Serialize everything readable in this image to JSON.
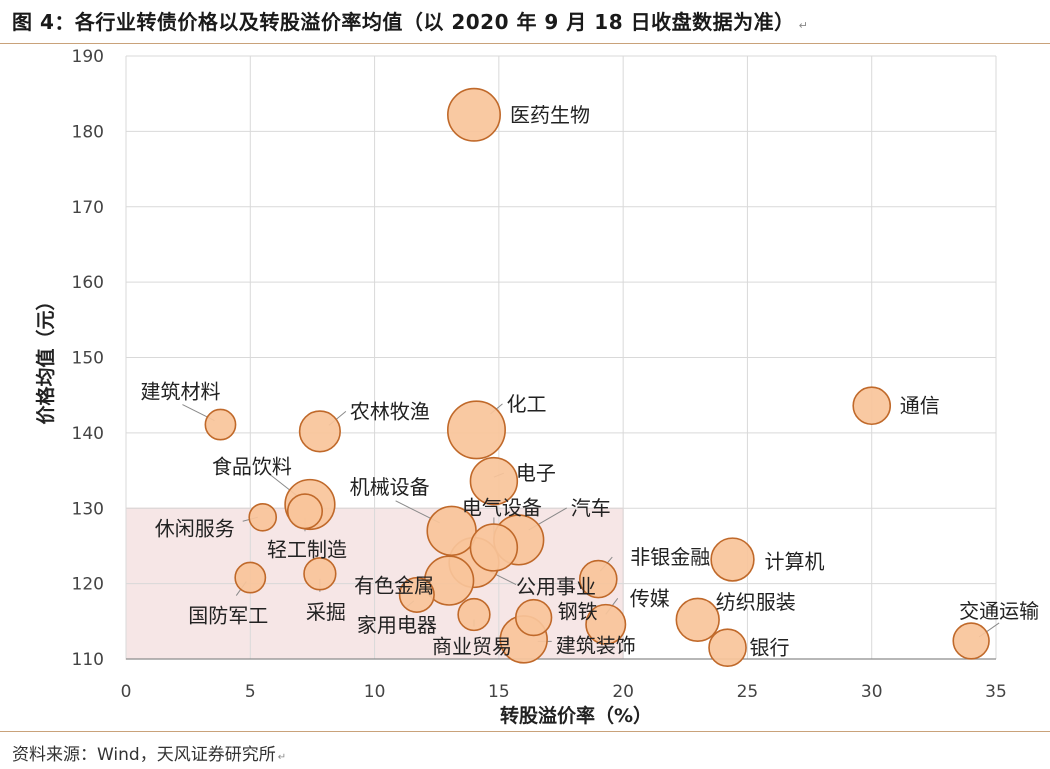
{
  "figure": {
    "title": "图 4：各行业转债价格以及转股溢价率均值（以 2020 年 9 月 18 日收盘数据为准）",
    "source": "资料来源：Wind，天风证券研究所"
  },
  "colors": {
    "bubble_fill": "#f8c49a",
    "bubble_stroke": "#c0692a",
    "highlight_region": "#f6e6e6",
    "grid": "#d9d9d9",
    "rule": "#c9a27a"
  },
  "chart_data": {
    "type": "scatter",
    "title": "",
    "xlabel": "转股溢价率（%）",
    "ylabel": "价格均值（元）",
    "xlim": [
      0,
      35
    ],
    "ylim": [
      110,
      190
    ],
    "xticks": [
      0,
      5,
      10,
      15,
      20,
      25,
      30,
      35
    ],
    "yticks": [
      110,
      120,
      130,
      140,
      150,
      160,
      170,
      180,
      190
    ],
    "grid": true,
    "highlight_region": {
      "x": [
        0,
        20
      ],
      "y": [
        110,
        130
      ]
    },
    "points": [
      {
        "name": "医药生物",
        "x": 14.0,
        "y": 182.2,
        "size": 3.0
      },
      {
        "name": "化工",
        "x": 14.1,
        "y": 140.4,
        "size": 3.6
      },
      {
        "name": "通信",
        "x": 30.0,
        "y": 143.6,
        "size": 1.5
      },
      {
        "name": "建筑材料",
        "x": 3.8,
        "y": 141.1,
        "size": 1.0
      },
      {
        "name": "农林牧渔",
        "x": 7.8,
        "y": 140.2,
        "size": 1.8
      },
      {
        "name": "电子",
        "x": 14.8,
        "y": 133.6,
        "size": 2.4
      },
      {
        "name": "食品饮料",
        "x": 7.4,
        "y": 130.5,
        "size": 2.7
      },
      {
        "name": "机械设备",
        "x": 13.1,
        "y": 127.0,
        "size": 2.6
      },
      {
        "name": "电气设备",
        "x": 14.8,
        "y": 124.8,
        "size": 2.4
      },
      {
        "name": "汽车",
        "x": 15.8,
        "y": 125.8,
        "size": 2.7
      },
      {
        "name": "休闲服务",
        "x": 5.5,
        "y": 128.8,
        "size": 0.8
      },
      {
        "name": "轻工制造",
        "x": 7.2,
        "y": 129.6,
        "size": 1.3
      },
      {
        "name": "有色金属",
        "x": 13.0,
        "y": 120.4,
        "size": 2.6
      },
      {
        "name": "公用事业",
        "x": 14.0,
        "y": 122.8,
        "size": 2.7
      },
      {
        "name": "非银金融",
        "x": 19.0,
        "y": 120.6,
        "size": 1.5
      },
      {
        "name": "计算机",
        "x": 24.4,
        "y": 123.2,
        "size": 2.0
      },
      {
        "name": "国防军工",
        "x": 5.0,
        "y": 120.8,
        "size": 1.0
      },
      {
        "name": "采掘",
        "x": 7.8,
        "y": 121.3,
        "size": 1.1
      },
      {
        "name": "家用电器",
        "x": 11.7,
        "y": 118.5,
        "size": 1.3
      },
      {
        "name": "商业贸易",
        "x": 14.0,
        "y": 115.9,
        "size": 1.1
      },
      {
        "name": "钢铁",
        "x": 16.4,
        "y": 115.5,
        "size": 1.4
      },
      {
        "name": "传媒",
        "x": 19.3,
        "y": 114.6,
        "size": 1.7
      },
      {
        "name": "建筑装饰",
        "x": 16.0,
        "y": 112.6,
        "size": 2.4
      },
      {
        "name": "纺织服装",
        "x": 23.0,
        "y": 115.2,
        "size": 2.0
      },
      {
        "name": "银行",
        "x": 24.2,
        "y": 111.5,
        "size": 1.5
      },
      {
        "name": "交通运输",
        "x": 34.0,
        "y": 112.4,
        "size": 1.4
      }
    ]
  }
}
